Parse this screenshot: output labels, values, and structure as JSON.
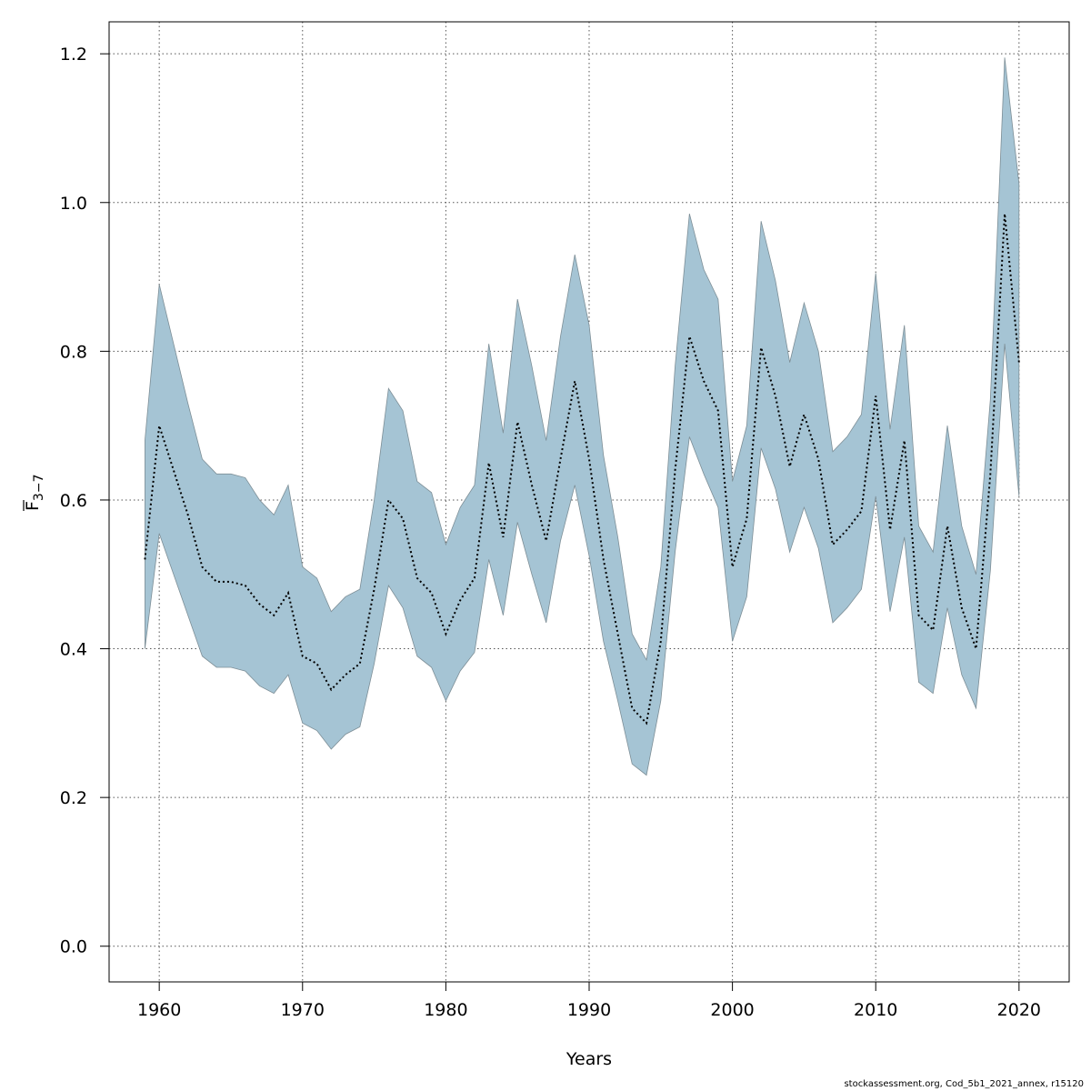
{
  "chart_data": {
    "type": "area",
    "title": "",
    "xlabel": "Years",
    "ylabel_main": "F",
    "ylabel_sub": "3−7",
    "xlim": [
      1956.5,
      2023.5
    ],
    "ylim": [
      -0.048,
      1.243
    ],
    "x_ticks": [
      1960,
      1970,
      1980,
      1990,
      2000,
      2010,
      2020
    ],
    "y_ticks": [
      0.0,
      0.2,
      0.4,
      0.6,
      0.8,
      1.0,
      1.2
    ],
    "y_tick_labels": [
      "0.0",
      "0.2",
      "0.4",
      "0.6",
      "0.8",
      "1.0",
      "1.2"
    ],
    "grid": true,
    "band_color": "#a5c4d4",
    "band_edge_color": "#7d8e96",
    "line_color": "#000000",
    "x": [
      1959,
      1960,
      1961,
      1962,
      1963,
      1964,
      1965,
      1966,
      1967,
      1968,
      1969,
      1970,
      1971,
      1972,
      1973,
      1974,
      1975,
      1976,
      1977,
      1978,
      1979,
      1980,
      1981,
      1982,
      1983,
      1984,
      1985,
      1986,
      1987,
      1988,
      1989,
      1990,
      1991,
      1992,
      1993,
      1994,
      1995,
      1996,
      1997,
      1998,
      1999,
      2000,
      2001,
      2002,
      2003,
      2004,
      2005,
      2006,
      2007,
      2008,
      2009,
      2010,
      2011,
      2012,
      2013,
      2014,
      2015,
      2016,
      2017,
      2018,
      2019,
      2020
    ],
    "series": [
      {
        "name": "F estimate",
        "values": [
          0.52,
          0.7,
          0.64,
          0.58,
          0.51,
          0.49,
          0.49,
          0.485,
          0.46,
          0.445,
          0.475,
          0.39,
          0.38,
          0.345,
          0.365,
          0.38,
          0.48,
          0.6,
          0.575,
          0.495,
          0.475,
          0.42,
          0.465,
          0.495,
          0.65,
          0.55,
          0.705,
          0.62,
          0.545,
          0.655,
          0.76,
          0.655,
          0.52,
          0.42,
          0.32,
          0.3,
          0.41,
          0.64,
          0.82,
          0.76,
          0.72,
          0.51,
          0.575,
          0.805,
          0.74,
          0.645,
          0.715,
          0.655,
          0.54,
          0.56,
          0.585,
          0.74,
          0.56,
          0.68,
          0.445,
          0.425,
          0.565,
          0.455,
          0.4,
          0.635,
          0.985,
          0.785
        ]
      },
      {
        "name": "Upper bound",
        "values": [
          0.68,
          0.89,
          0.81,
          0.73,
          0.655,
          0.635,
          0.635,
          0.63,
          0.6,
          0.58,
          0.62,
          0.51,
          0.495,
          0.45,
          0.47,
          0.48,
          0.6,
          0.75,
          0.72,
          0.625,
          0.61,
          0.54,
          0.59,
          0.62,
          0.81,
          0.69,
          0.87,
          0.78,
          0.68,
          0.82,
          0.93,
          0.835,
          0.66,
          0.55,
          0.42,
          0.385,
          0.51,
          0.78,
          0.985,
          0.91,
          0.87,
          0.625,
          0.7,
          0.975,
          0.895,
          0.785,
          0.865,
          0.8,
          0.665,
          0.685,
          0.715,
          0.905,
          0.695,
          0.835,
          0.565,
          0.53,
          0.7,
          0.565,
          0.5,
          0.735,
          1.195,
          1.025
        ]
      },
      {
        "name": "Lower bound",
        "values": [
          0.4,
          0.555,
          0.5,
          0.445,
          0.39,
          0.375,
          0.375,
          0.37,
          0.35,
          0.34,
          0.365,
          0.3,
          0.29,
          0.265,
          0.285,
          0.295,
          0.38,
          0.485,
          0.455,
          0.39,
          0.375,
          0.33,
          0.37,
          0.395,
          0.52,
          0.445,
          0.57,
          0.5,
          0.435,
          0.545,
          0.62,
          0.525,
          0.41,
          0.33,
          0.245,
          0.23,
          0.33,
          0.53,
          0.685,
          0.635,
          0.59,
          0.41,
          0.47,
          0.67,
          0.615,
          0.53,
          0.59,
          0.535,
          0.435,
          0.455,
          0.48,
          0.605,
          0.45,
          0.55,
          0.355,
          0.34,
          0.455,
          0.365,
          0.32,
          0.505,
          0.81,
          0.605
        ]
      }
    ]
  },
  "footer": {
    "text": "stockassessment.org, Cod_5b1_2021_annex, r15120"
  }
}
